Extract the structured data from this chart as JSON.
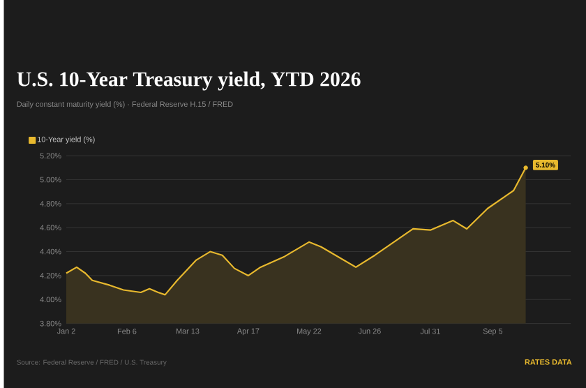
{
  "chart_data": {
    "type": "area",
    "title": "U.S. 10-Year Treasury yield, YTD 2026",
    "subtitle": "Daily constant maturity yield (%) · Federal Reserve H.15 / FRED",
    "x": [
      "2026-01-02",
      "2026-01-08",
      "2026-01-13",
      "2026-01-17",
      "2026-01-27",
      "2026-02-04",
      "2026-02-14",
      "2026-02-19",
      "2026-02-24",
      "2026-02-28",
      "2026-03-07",
      "2026-03-18",
      "2026-03-26",
      "2026-04-02",
      "2026-04-09",
      "2026-04-17",
      "2026-04-24",
      "2026-05-08",
      "2026-05-22",
      "2026-05-29",
      "2026-06-18",
      "2026-06-29",
      "2026-07-21",
      "2026-07-31",
      "2026-08-13",
      "2026-08-21",
      "2026-09-02",
      "2026-09-13",
      "2026-09-17",
      "2026-09-24"
    ],
    "series": [
      {
        "name": "10-Year yield (%)",
        "color": "#e8b92e",
        "values": [
          4.22,
          4.27,
          4.22,
          4.16,
          4.12,
          4.08,
          4.06,
          4.09,
          4.06,
          4.04,
          4.16,
          4.33,
          4.4,
          4.37,
          4.26,
          4.2,
          4.27,
          4.36,
          4.48,
          4.44,
          4.27,
          4.37,
          4.59,
          4.58,
          4.66,
          4.59,
          4.76,
          4.87,
          4.91,
          5.1
        ],
        "value_labels": [
          null,
          null,
          null,
          null,
          null,
          null,
          null,
          null,
          null,
          null,
          null,
          null,
          null,
          null,
          null,
          null,
          null,
          null,
          null,
          null,
          null,
          null,
          null,
          null,
          null,
          null,
          null,
          null,
          null,
          "5.10%"
        ]
      }
    ],
    "xlim": [
      "2026-01-02",
      "2026-10-20"
    ],
    "xticks": [
      {
        "value": "2026-01-02",
        "label": "Jan 2"
      },
      {
        "value": "2026-02-06",
        "label": "Feb 6"
      },
      {
        "value": "2026-03-13",
        "label": "Mar 13"
      },
      {
        "value": "2026-04-17",
        "label": "Apr 17"
      },
      {
        "value": "2026-05-22",
        "label": "May 22"
      },
      {
        "value": "2026-06-26",
        "label": "Jun 26"
      },
      {
        "value": "2026-07-31",
        "label": "Jul 31"
      },
      {
        "value": "2026-09-05",
        "label": "Sep 5"
      }
    ],
    "ylim": [
      3.8,
      5.2
    ],
    "yticks": [
      {
        "value": 3.8,
        "label": "3.80%"
      },
      {
        "value": 4.0,
        "label": "4.00%"
      },
      {
        "value": 4.2,
        "label": "4.20%"
      },
      {
        "value": 4.4,
        "label": "4.40%"
      },
      {
        "value": 4.6,
        "label": "4.60%"
      },
      {
        "value": 4.8,
        "label": "4.80%"
      },
      {
        "value": 5.0,
        "label": "5.00%"
      },
      {
        "value": 5.2,
        "label": "5.20%"
      }
    ],
    "grid": "y",
    "legend": "top left",
    "annotations": [
      "Source: Federal Reserve / FRED / U.S. Treasury",
      "RATES DATA"
    ]
  }
}
